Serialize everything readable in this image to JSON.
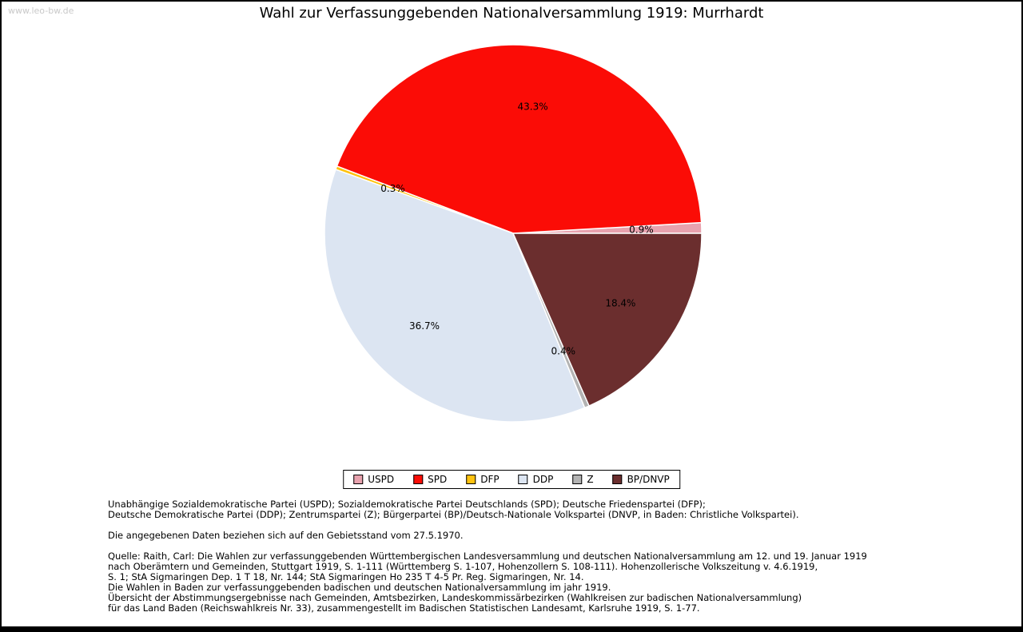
{
  "watermark": "www.leo-bw.de",
  "title": "Wahl zur Verfassunggebenden Nationalversammlung 1919: Murrhardt",
  "chart_data": {
    "type": "pie",
    "title": "Wahl zur Verfassunggebenden Nationalversammlung 1919: Murrhardt",
    "categories": [
      "USPD",
      "SPD",
      "DFP",
      "DDP",
      "Z",
      "BP/DNVP"
    ],
    "values": [
      0.9,
      43.3,
      0.3,
      36.7,
      0.4,
      18.4
    ],
    "unit": "%",
    "colors": [
      "#E8A2AE",
      "#FB0C06",
      "#FFC20E",
      "#DCE5F2",
      "#B3B3B3",
      "#6B2E2E"
    ],
    "start_angle_deg": 0,
    "direction": "counterclockwise",
    "legend_position": "bottom",
    "slice_border_color": "#FFFFFF"
  },
  "notes": {
    "party_explanation_lines": [
      "Unabhängige Sozialdemokratische Partei (USPD); Sozialdemokratische Partei Deutschlands (SPD); Deutsche Friedenspartei (DFP);",
      "Deutsche Demokratische Partei (DDP); Zentrumspartei (Z); Bürgerpartei (BP)/Deutsch-Nationale Volkspartei (DNVP, in Baden: Christliche Volkspartei)."
    ],
    "territorial_note": "Die angegebenen Daten beziehen sich auf den Gebietsstand vom 27.5.1970.",
    "source_lines": [
      "Quelle: Raith, Carl: Die Wahlen zur verfassunggebenden Württembergischen Landesversammlung und deutschen Nationalversammlung am 12. und 19. Januar 1919",
      "nach Oberämtern und Gemeinden, Stuttgart 1919, S. 1-111 (Württemberg S. 1-107, Hohenzollern S. 108-111). Hohenzollerische Volkszeitung v. 4.6.1919,",
      "S. 1; StA Sigmaringen Dep. 1 T 18, Nr. 144; StA Sigmaringen Ho 235 T 4-5 Pr. Reg. Sigmaringen, Nr. 14.",
      "Die Wahlen in Baden zur verfassunggebenden badischen und deutschen Nationalversammlung im jahr 1919.",
      "Übersicht der Abstimmungsergebnisse nach Gemeinden, Amtsbezirken, Landeskommissärbezirken (Wahlkreisen zur badischen Nationalversammlung)",
      "für das Land Baden (Reichswahlkreis Nr. 33), zusammengestellt im Badischen Statistischen Landesamt, Karlsruhe 1919, S. 1-77."
    ]
  }
}
